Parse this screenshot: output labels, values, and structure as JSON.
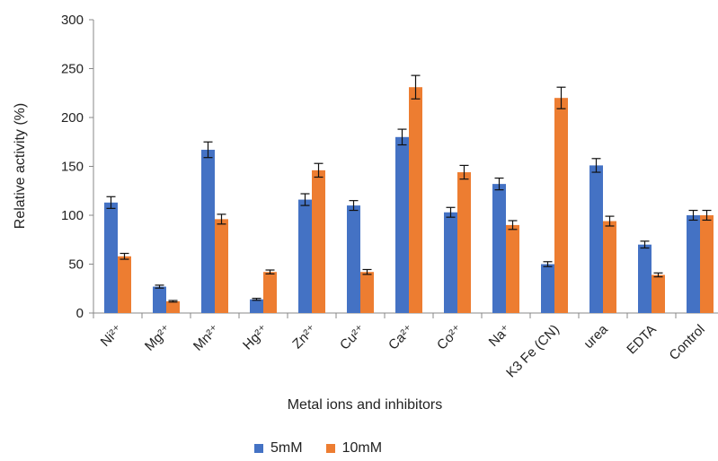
{
  "chart_data": {
    "type": "bar",
    "title": "",
    "xlabel": "Metal ions and inhibitors",
    "ylabel": "Relative activity (%)",
    "ylim": [
      0,
      300
    ],
    "yticks": [
      "0",
      "50",
      "100",
      "150",
      "200",
      "250",
      "300"
    ],
    "categories": [
      "Ni²⁺",
      "Mg²⁺",
      "Mn²⁺",
      "Hg²⁺",
      "Zn²⁺",
      "Cu²⁺",
      "Ca²⁺",
      "Co²⁺",
      "Na⁺",
      "K3 Fe (CN)",
      "urea",
      "EDTA",
      "Control"
    ],
    "series": [
      {
        "name": "5mM",
        "color": "#4472C4",
        "values": [
          113,
          27,
          167,
          14,
          116,
          110,
          180,
          103,
          132,
          50,
          151,
          70,
          100
        ],
        "errors": [
          6,
          1.5,
          8,
          1,
          6,
          5,
          8,
          5,
          6,
          2.5,
          7,
          3.5,
          5
        ]
      },
      {
        "name": "10mM",
        "color": "#ED7D31",
        "values": [
          58,
          12,
          96,
          42,
          146,
          42,
          231,
          144,
          90,
          220,
          94,
          39,
          100
        ],
        "errors": [
          3,
          0.8,
          5,
          2,
          7,
          2.5,
          12,
          7,
          4.5,
          11,
          5,
          2,
          5
        ]
      }
    ],
    "legend_position": "bottom",
    "grid": false
  }
}
